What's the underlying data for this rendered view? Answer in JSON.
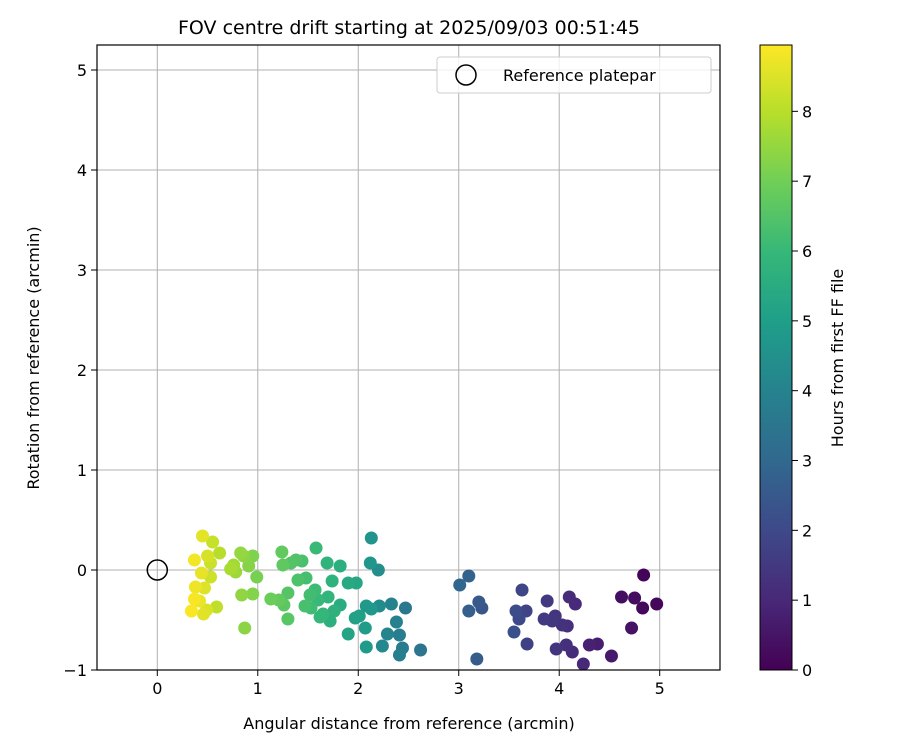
{
  "chart_data": {
    "type": "scatter",
    "title": "FOV centre drift starting at 2025/09/03 00:51:45",
    "xlabel": "Angular distance from reference (arcmin)",
    "ylabel": "Rotation from reference (arcmin)",
    "xlim": [
      -0.6,
      5.6
    ],
    "ylim": [
      -1.0,
      5.25
    ],
    "xticks": [
      0,
      1,
      2,
      3,
      4,
      5
    ],
    "yticks": [
      -1,
      0,
      1,
      2,
      3,
      4,
      5
    ],
    "grid": true,
    "legend": {
      "position": "top-right",
      "label": "Reference platepar"
    },
    "reference_point": {
      "x": 0,
      "y": 0
    },
    "colorbar": {
      "label": "Hours from first FF file",
      "range": [
        0,
        8.95
      ],
      "ticks": [
        0,
        1,
        2,
        3,
        4,
        5,
        6,
        7,
        8
      ],
      "colormap": "viridis"
    },
    "points": [
      {
        "x": 4.84,
        "y": -0.05,
        "t": 0.1
      },
      {
        "x": 4.97,
        "y": -0.34,
        "t": 0.15
      },
      {
        "x": 4.83,
        "y": -0.38,
        "t": 0.2
      },
      {
        "x": 4.75,
        "y": -0.28,
        "t": 0.3
      },
      {
        "x": 4.62,
        "y": -0.27,
        "t": 0.35
      },
      {
        "x": 4.72,
        "y": -0.58,
        "t": 0.45
      },
      {
        "x": 4.52,
        "y": -0.86,
        "t": 0.6
      },
      {
        "x": 4.38,
        "y": -0.74,
        "t": 0.75
      },
      {
        "x": 4.3,
        "y": -0.75,
        "t": 0.85
      },
      {
        "x": 4.24,
        "y": -0.94,
        "t": 1.0
      },
      {
        "x": 4.16,
        "y": -0.34,
        "t": 1.05
      },
      {
        "x": 4.1,
        "y": -0.27,
        "t": 1.1
      },
      {
        "x": 4.13,
        "y": -0.82,
        "t": 1.15
      },
      {
        "x": 4.08,
        "y": -0.56,
        "t": 1.2
      },
      {
        "x": 4.07,
        "y": -0.75,
        "t": 1.25
      },
      {
        "x": 4.03,
        "y": -0.55,
        "t": 1.3
      },
      {
        "x": 3.97,
        "y": -0.79,
        "t": 1.35
      },
      {
        "x": 3.96,
        "y": -0.46,
        "t": 1.4
      },
      {
        "x": 3.93,
        "y": -0.51,
        "t": 1.45
      },
      {
        "x": 3.88,
        "y": -0.31,
        "t": 1.5
      },
      {
        "x": 3.85,
        "y": -0.49,
        "t": 1.55
      },
      {
        "x": 3.68,
        "y": -0.74,
        "t": 1.75
      },
      {
        "x": 3.67,
        "y": -0.41,
        "t": 1.8
      },
      {
        "x": 3.63,
        "y": -0.2,
        "t": 1.9
      },
      {
        "x": 3.6,
        "y": -0.49,
        "t": 2.0
      },
      {
        "x": 3.57,
        "y": -0.41,
        "t": 2.1
      },
      {
        "x": 3.55,
        "y": -0.62,
        "t": 2.2
      },
      {
        "x": 3.23,
        "y": -0.38,
        "t": 2.4
      },
      {
        "x": 3.2,
        "y": -0.32,
        "t": 2.5
      },
      {
        "x": 3.18,
        "y": -0.89,
        "t": 2.6
      },
      {
        "x": 3.1,
        "y": -0.41,
        "t": 2.7
      },
      {
        "x": 3.1,
        "y": -0.06,
        "t": 2.8
      },
      {
        "x": 3.01,
        "y": -0.15,
        "t": 2.95
      },
      {
        "x": 2.62,
        "y": -0.8,
        "t": 3.5
      },
      {
        "x": 2.47,
        "y": -0.38,
        "t": 3.6
      },
      {
        "x": 2.44,
        "y": -0.78,
        "t": 3.7
      },
      {
        "x": 2.41,
        "y": -0.65,
        "t": 3.8
      },
      {
        "x": 2.41,
        "y": -0.85,
        "t": 3.85
      },
      {
        "x": 2.38,
        "y": -0.52,
        "t": 3.9
      },
      {
        "x": 2.33,
        "y": -0.34,
        "t": 4.0
      },
      {
        "x": 2.29,
        "y": -0.64,
        "t": 4.1
      },
      {
        "x": 2.24,
        "y": -0.76,
        "t": 4.2
      },
      {
        "x": 2.21,
        "y": -0.36,
        "t": 4.3
      },
      {
        "x": 2.2,
        "y": 0.0,
        "t": 4.4
      },
      {
        "x": 2.13,
        "y": 0.32,
        "t": 4.6
      },
      {
        "x": 2.12,
        "y": 0.07,
        "t": 4.7
      },
      {
        "x": 2.13,
        "y": -0.39,
        "t": 4.75
      },
      {
        "x": 2.08,
        "y": -0.36,
        "t": 4.8
      },
      {
        "x": 2.08,
        "y": -0.77,
        "t": 4.85
      },
      {
        "x": 2.07,
        "y": -0.58,
        "t": 4.9
      },
      {
        "x": 2.01,
        "y": -0.46,
        "t": 5.0
      },
      {
        "x": 1.97,
        "y": -0.48,
        "t": 5.1
      },
      {
        "x": 1.9,
        "y": -0.64,
        "t": 5.2
      },
      {
        "x": 1.98,
        "y": -0.13,
        "t": 5.3
      },
      {
        "x": 1.9,
        "y": -0.13,
        "t": 5.4
      },
      {
        "x": 1.82,
        "y": -0.35,
        "t": 5.5
      },
      {
        "x": 1.82,
        "y": 0.04,
        "t": 5.6
      },
      {
        "x": 1.72,
        "y": -0.51,
        "t": 5.65
      },
      {
        "x": 1.76,
        "y": -0.41,
        "t": 5.7
      },
      {
        "x": 1.74,
        "y": -0.11,
        "t": 5.75
      },
      {
        "x": 1.69,
        "y": 0.07,
        "t": 5.8
      },
      {
        "x": 1.7,
        "y": -0.27,
        "t": 5.85
      },
      {
        "x": 1.65,
        "y": -0.44,
        "t": 5.9
      },
      {
        "x": 1.62,
        "y": -0.47,
        "t": 5.95
      },
      {
        "x": 1.6,
        "y": -0.3,
        "t": 6.0
      },
      {
        "x": 1.58,
        "y": 0.22,
        "t": 6.05
      },
      {
        "x": 1.57,
        "y": -0.2,
        "t": 6.1
      },
      {
        "x": 1.53,
        "y": -0.38,
        "t": 6.15
      },
      {
        "x": 1.52,
        "y": -0.25,
        "t": 6.2
      },
      {
        "x": 1.48,
        "y": -0.08,
        "t": 6.25
      },
      {
        "x": 1.47,
        "y": -0.36,
        "t": 6.3
      },
      {
        "x": 1.44,
        "y": 0.09,
        "t": 6.35
      },
      {
        "x": 1.4,
        "y": -0.1,
        "t": 6.4
      },
      {
        "x": 1.38,
        "y": 0.1,
        "t": 6.45
      },
      {
        "x": 1.33,
        "y": 0.07,
        "t": 6.5
      },
      {
        "x": 1.3,
        "y": -0.23,
        "t": 6.55
      },
      {
        "x": 1.3,
        "y": -0.49,
        "t": 6.6
      },
      {
        "x": 1.26,
        "y": -0.35,
        "t": 6.65
      },
      {
        "x": 1.25,
        "y": 0.05,
        "t": 6.7
      },
      {
        "x": 1.24,
        "y": 0.18,
        "t": 6.75
      },
      {
        "x": 1.21,
        "y": -0.3,
        "t": 6.8
      },
      {
        "x": 1.13,
        "y": -0.29,
        "t": 6.9
      },
      {
        "x": 0.99,
        "y": -0.07,
        "t": 7.1
      },
      {
        "x": 0.95,
        "y": 0.14,
        "t": 7.2
      },
      {
        "x": 0.95,
        "y": -0.24,
        "t": 7.25
      },
      {
        "x": 0.91,
        "y": 0.04,
        "t": 7.3
      },
      {
        "x": 0.87,
        "y": -0.58,
        "t": 7.35
      },
      {
        "x": 0.86,
        "y": 0.14,
        "t": 7.4
      },
      {
        "x": 0.84,
        "y": -0.25,
        "t": 7.45
      },
      {
        "x": 0.83,
        "y": 0.17,
        "t": 7.5
      },
      {
        "x": 0.78,
        "y": -0.02,
        "t": 7.6
      },
      {
        "x": 0.76,
        "y": 0.05,
        "t": 7.7
      },
      {
        "x": 0.73,
        "y": 0.01,
        "t": 7.8
      },
      {
        "x": 0.62,
        "y": 0.17,
        "t": 8.0
      },
      {
        "x": 0.59,
        "y": -0.37,
        "t": 8.1
      },
      {
        "x": 0.55,
        "y": 0.28,
        "t": 8.2
      },
      {
        "x": 0.53,
        "y": 0.07,
        "t": 8.25
      },
      {
        "x": 0.53,
        "y": -0.07,
        "t": 8.3
      },
      {
        "x": 0.5,
        "y": 0.14,
        "t": 8.4
      },
      {
        "x": 0.49,
        "y": -0.4,
        "t": 8.45
      },
      {
        "x": 0.47,
        "y": -0.18,
        "t": 8.5
      },
      {
        "x": 0.46,
        "y": -0.44,
        "t": 8.55
      },
      {
        "x": 0.45,
        "y": 0.34,
        "t": 8.6
      },
      {
        "x": 0.44,
        "y": -0.03,
        "t": 8.65
      },
      {
        "x": 0.42,
        "y": -0.31,
        "t": 8.7
      },
      {
        "x": 0.38,
        "y": -0.17,
        "t": 8.75
      },
      {
        "x": 0.37,
        "y": 0.1,
        "t": 8.8
      },
      {
        "x": 0.37,
        "y": -0.29,
        "t": 8.85
      },
      {
        "x": 0.34,
        "y": -0.41,
        "t": 8.9
      }
    ]
  }
}
